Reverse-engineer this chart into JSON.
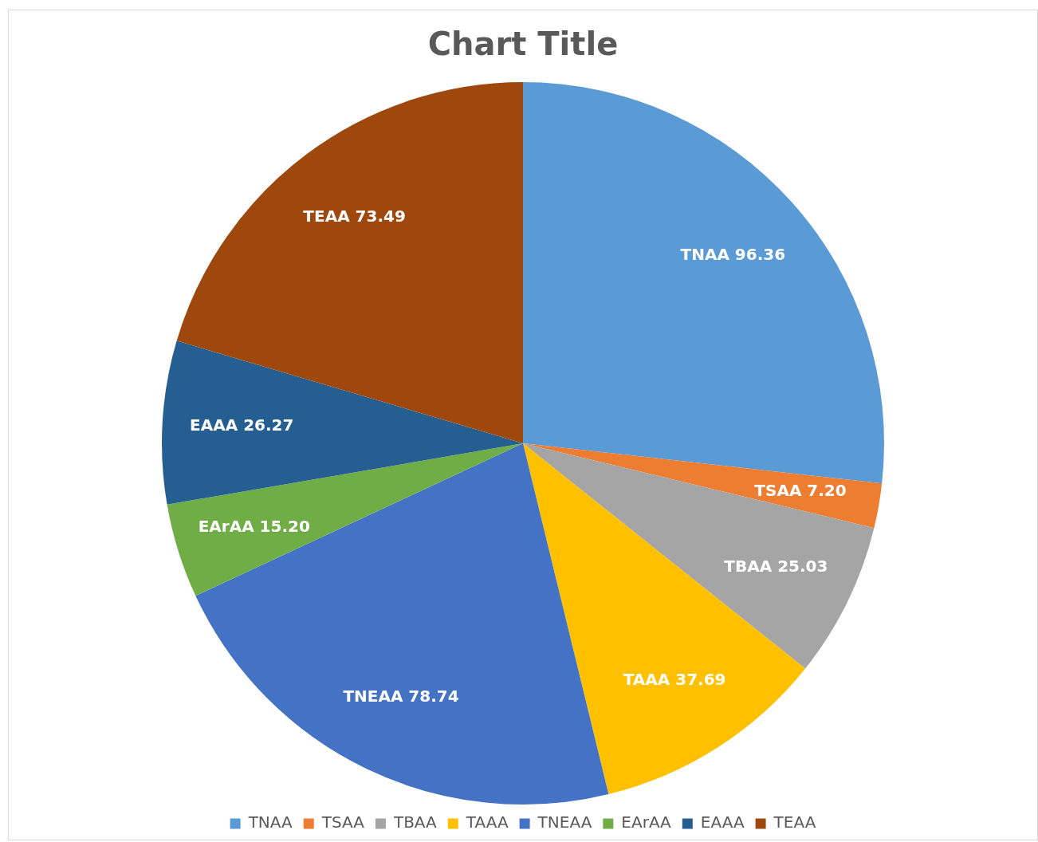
{
  "chart_data": {
    "type": "pie",
    "title": "Chart Title",
    "categories": [
      "TNAA",
      "TSAA",
      "TBAA",
      "TAAA",
      "TNEAA",
      "EArAA",
      "EAAA",
      "TEAA"
    ],
    "values": [
      96.36,
      7.2,
      25.03,
      37.69,
      78.74,
      15.2,
      26.27,
      73.49
    ],
    "value_labels": [
      "96.36",
      "7.20",
      "25.03",
      "37.69",
      "78.74",
      "15.20",
      "26.27",
      "73.49"
    ],
    "colors": [
      "#5b9bd5",
      "#ed7d31",
      "#a5a5a5",
      "#ffc000",
      "#4472c4",
      "#70ad47",
      "#255e91",
      "#9e480e"
    ],
    "legend": "bottom"
  }
}
